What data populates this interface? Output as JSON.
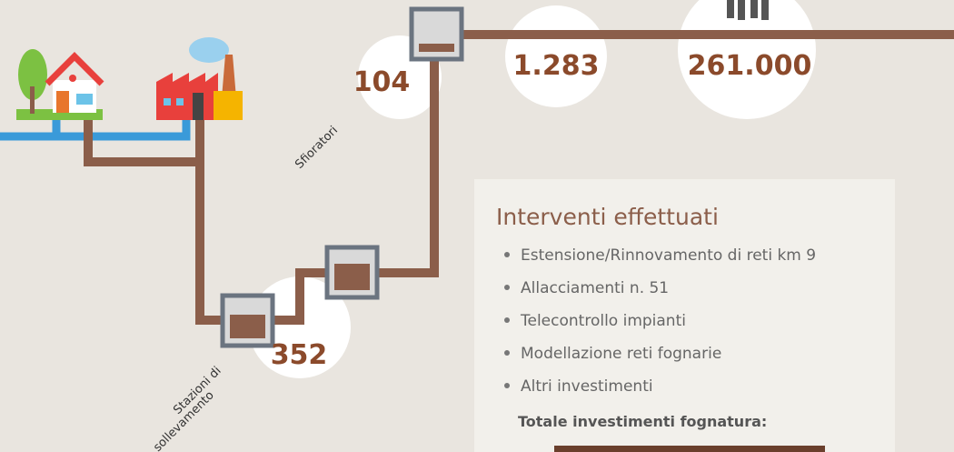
{
  "stats": [
    {
      "value": "104",
      "label": "Sfioratori"
    },
    {
      "value": "352",
      "label": [
        "Stazioni di",
        "sollevamento"
      ]
    },
    {
      "value": "1.283"
    },
    {
      "value": "261.000"
    }
  ],
  "panel": {
    "title": "Interventi effettuati",
    "items": [
      "Estensione/Rinnovamento di reti km 9",
      "Allacciamenti n. 51",
      "Telecontrollo impianti",
      "Modellazione reti fognarie",
      "Altri investimenti"
    ],
    "total": "Totale investimenti fognatura:"
  }
}
